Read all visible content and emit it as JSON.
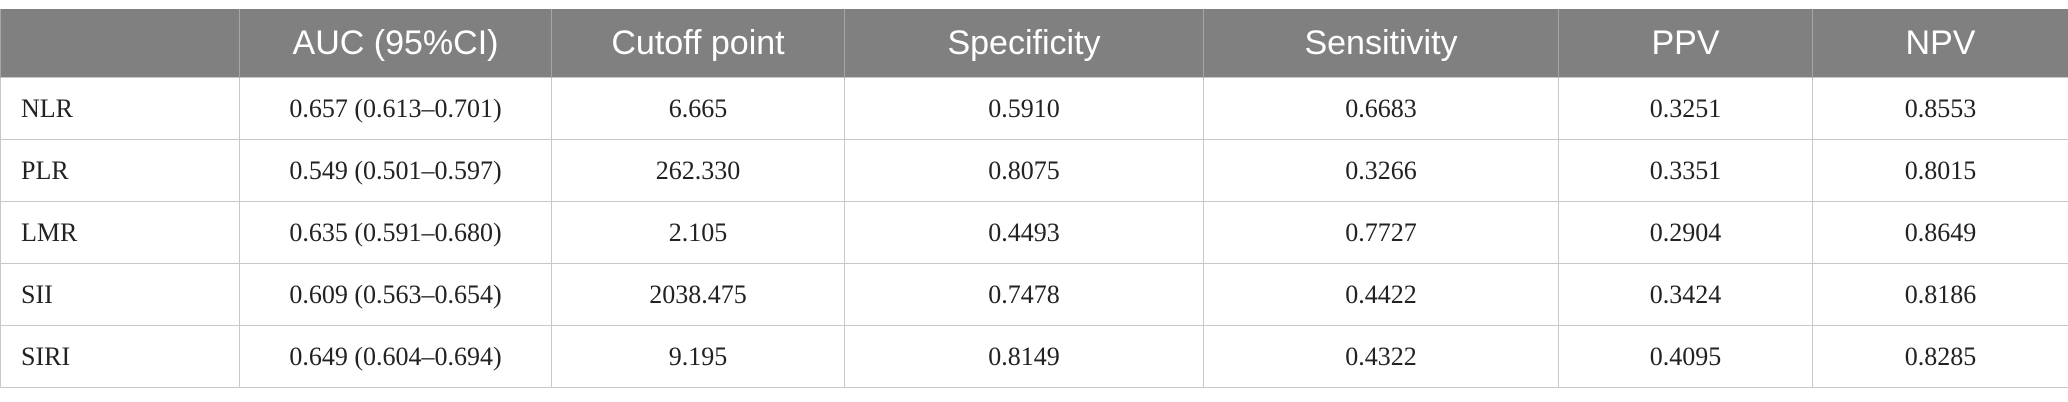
{
  "table": {
    "header": [
      "",
      "AUC (95%CI)",
      "Cutoff point",
      "Specificity",
      "Sensitivity",
      "PPV",
      "NPV"
    ],
    "rows": [
      [
        "NLR",
        "0.657 (0.613–0.701)",
        "6.665",
        "0.5910",
        "0.6683",
        "0.3251",
        "0.8553"
      ],
      [
        "PLR",
        "0.549 (0.501–0.597)",
        "262.330",
        "0.8075",
        "0.3266",
        "0.3351",
        "0.8015"
      ],
      [
        "LMR",
        "0.635 (0.591–0.680)",
        "2.105",
        "0.4493",
        "0.7727",
        "0.2904",
        "0.8649"
      ],
      [
        "SII",
        "0.609 (0.563–0.654)",
        "2038.475",
        "0.7478",
        "0.4422",
        "0.3424",
        "0.8186"
      ],
      [
        "SIRI",
        "0.649 (0.604–0.694)",
        "9.195",
        "0.8149",
        "0.4322",
        "0.4095",
        "0.8285"
      ]
    ]
  }
}
